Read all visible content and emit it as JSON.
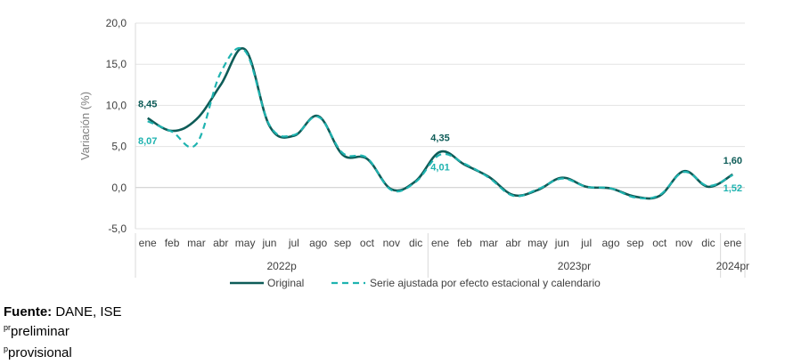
{
  "chart_data": {
    "type": "line",
    "ylabel": "Variación (%)",
    "ylim": [
      -5,
      20
    ],
    "yticks": [
      "20,0",
      "15,0",
      "10,0",
      "5,0",
      "0,0",
      "-5,0"
    ],
    "ytick_values": [
      20,
      15,
      10,
      5,
      0,
      -5
    ],
    "categories": [
      "ene",
      "feb",
      "mar",
      "abr",
      "may",
      "jun",
      "jul",
      "ago",
      "sep",
      "oct",
      "nov",
      "dic",
      "ene",
      "feb",
      "mar",
      "abr",
      "may",
      "jun",
      "jul",
      "ago",
      "sep",
      "oct",
      "nov",
      "dic",
      "ene"
    ],
    "groups": [
      {
        "label": "2022p",
        "start": 0,
        "end": 11
      },
      {
        "label": "2023pr",
        "start": 12,
        "end": 23
      },
      {
        "label": "2024pr",
        "start": 24,
        "end": 24
      }
    ],
    "series": [
      {
        "name": "Original",
        "color": "#0e5c58",
        "style": "solid",
        "values": [
          8.45,
          6.9,
          8.3,
          12.5,
          16.8,
          7.5,
          6.3,
          8.7,
          4.0,
          3.5,
          -0.2,
          0.8,
          4.35,
          2.8,
          1.3,
          -0.9,
          -0.3,
          1.2,
          0.1,
          -0.1,
          -1.1,
          -1.0,
          2.0,
          0.1,
          1.6
        ]
      },
      {
        "name": "Serie ajustada por efecto estacional y calendario",
        "color": "#1fb3b0",
        "style": "dashed",
        "values": [
          8.07,
          6.8,
          5.3,
          14.0,
          16.6,
          7.6,
          6.4,
          8.6,
          4.2,
          3.6,
          -0.3,
          0.7,
          4.01,
          2.9,
          1.2,
          -1.0,
          -0.2,
          1.1,
          0.1,
          -0.1,
          -1.2,
          -0.9,
          1.9,
          0.2,
          1.52
        ]
      }
    ],
    "annotations": [
      {
        "series": 0,
        "index": 0,
        "text": "8,45"
      },
      {
        "series": 1,
        "index": 0,
        "text": "8,07"
      },
      {
        "series": 0,
        "index": 12,
        "text": "4,35"
      },
      {
        "series": 1,
        "index": 12,
        "text": "4,01"
      },
      {
        "series": 0,
        "index": 24,
        "text": "1,60"
      },
      {
        "series": 1,
        "index": 24,
        "text": "1,52"
      }
    ],
    "legend_position": "bottom"
  },
  "footer": {
    "source_label": "Fuente:",
    "source_text": " DANE, ISE",
    "note1_sup": "pr",
    "note1_text": "preliminar",
    "note2_sup": "p",
    "note2_text": "provisional"
  }
}
